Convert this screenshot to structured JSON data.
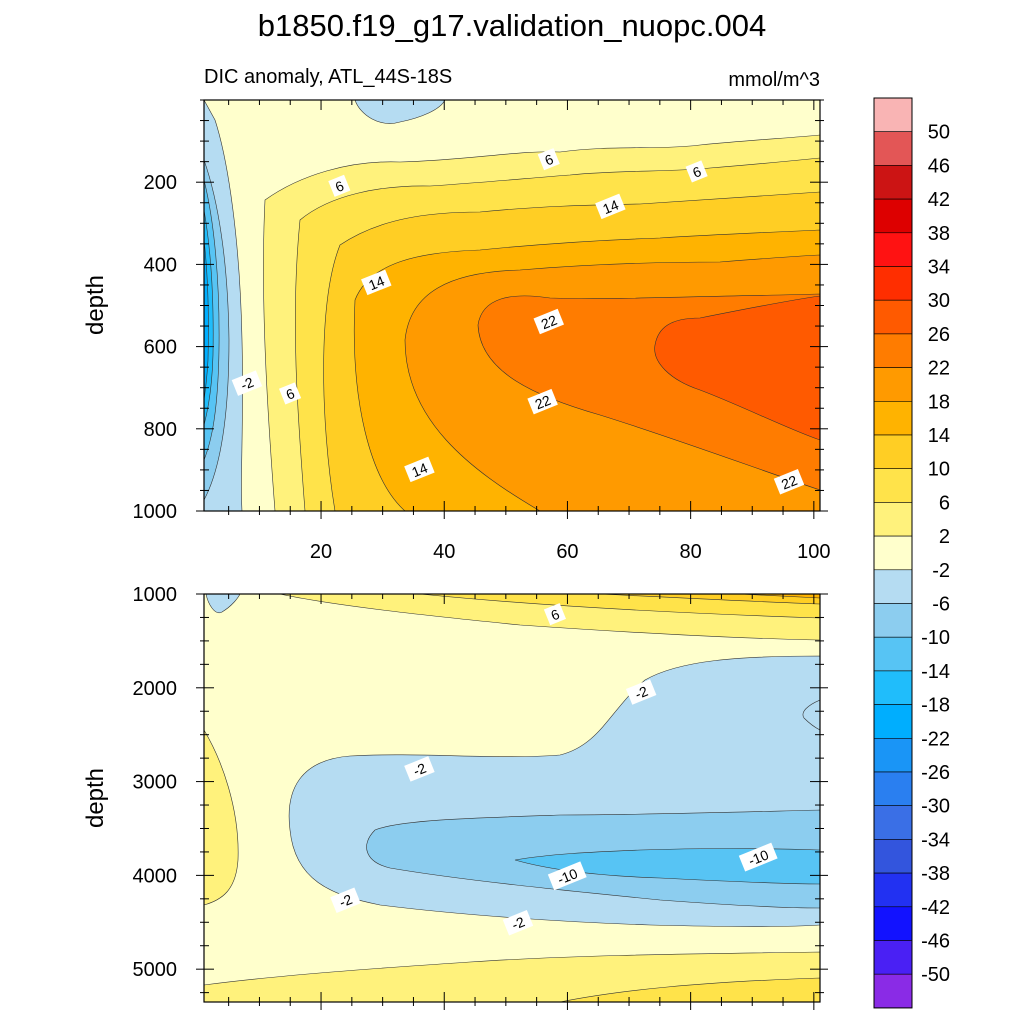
{
  "chart_data": {
    "type": "heatmap",
    "title": "b1850.f19_g17.validation_nuopc.004",
    "subtitle": "DIC anomaly, ATL_44S-18S",
    "units": "mmol/m^3",
    "colorbar": {
      "labels": [
        "50",
        "46",
        "42",
        "38",
        "34",
        "30",
        "26",
        "22",
        "18",
        "14",
        "10",
        "6",
        "2",
        "-2",
        "-6",
        "-10",
        "-14",
        "-18",
        "-22",
        "-26",
        "-30",
        "-34",
        "-38",
        "-42",
        "-46",
        "-50"
      ],
      "colors": [
        "#f9b4b4",
        "#e35656",
        "#cc1414",
        "#dd0000",
        "#ff1212",
        "#ff2e00",
        "#ff5a00",
        "#ff7c00",
        "#ff9a00",
        "#ffb300",
        "#ffce24",
        "#ffe34a",
        "#fff27c",
        "#ffffcc",
        "#b5dcf2",
        "#8ccdef",
        "#57c4f4",
        "#20bdfb",
        "#00aefe",
        "#1a95f6",
        "#2a7ff0",
        "#3a6fe6",
        "#3355dd",
        "#2231f2",
        "#1212ff",
        "#4a20f4",
        "#8a2be6"
      ],
      "color_order": "top-to-bottom"
    },
    "panels": [
      {
        "name": "upper-ocean",
        "ylabel": "depth",
        "xlim": [
          1,
          101
        ],
        "ylim": [
          1000,
          0
        ],
        "xticks": [
          20,
          40,
          60,
          80,
          100
        ],
        "yticks": [
          200,
          400,
          600,
          800,
          1000
        ],
        "contour_labels": [
          {
            "text": "6",
            "x": 23,
            "y": 210
          },
          {
            "text": "6",
            "x": 57,
            "y": 145
          },
          {
            "text": "6",
            "x": 81,
            "y": 175
          },
          {
            "text": "14",
            "x": 67,
            "y": 260
          },
          {
            "text": "14",
            "x": 29,
            "y": 445
          },
          {
            "text": "22",
            "x": 57,
            "y": 540
          },
          {
            "text": "-2",
            "x": 8,
            "y": 690
          },
          {
            "text": "6",
            "x": 15,
            "y": 715
          },
          {
            "text": "22",
            "x": 56,
            "y": 735
          },
          {
            "text": "14",
            "x": 36,
            "y": 900
          },
          {
            "text": "22",
            "x": 96,
            "y": 930
          }
        ]
      },
      {
        "name": "deep-ocean",
        "ylabel": "depth",
        "xlim": [
          1,
          101
        ],
        "ylim": [
          5350,
          1000
        ],
        "xticks": [
          20,
          40,
          60,
          80,
          100
        ],
        "yticks": [
          1000,
          2000,
          3000,
          4000,
          5000
        ],
        "contour_labels": [
          {
            "text": "6",
            "x": 58,
            "y": 1220
          },
          {
            "text": "-2",
            "x": 72,
            "y": 2050
          },
          {
            "text": "-2",
            "x": 36,
            "y": 2870
          },
          {
            "text": "-10",
            "x": 91,
            "y": 3810
          },
          {
            "text": "-10",
            "x": 60,
            "y": 4010
          },
          {
            "text": "-2",
            "x": 24,
            "y": 4270
          },
          {
            "text": "-2",
            "x": 52,
            "y": 4510
          }
        ]
      }
    ]
  }
}
